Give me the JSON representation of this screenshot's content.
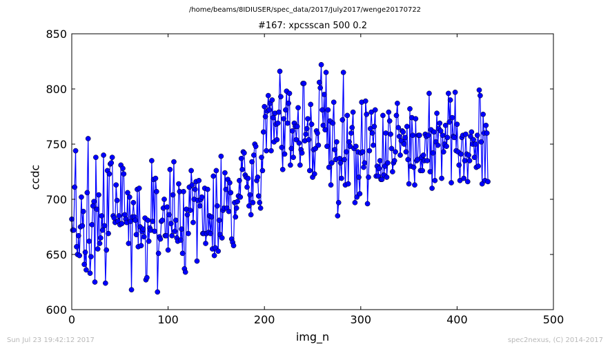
{
  "header": {
    "suptitle": "/home/beams/8IDIUSER/spec_data/2017/July2017/wenge20170722",
    "title": "#167: xpcsscan 500 0.2"
  },
  "footer": {
    "timestamp": "Sun Jul 23 19:42:12 2017",
    "credit": "spec2nexus, (C) 2014-2017"
  },
  "colors": {
    "series": "#0000ff",
    "axes": "#000000",
    "background": "#ffffff",
    "footer_text": "#b8b8b8"
  },
  "chart_data": {
    "type": "line",
    "xlabel": "img_n",
    "ylabel": "ccdc",
    "xlim": [
      0,
      500
    ],
    "ylim": [
      600,
      850
    ],
    "xticks": [
      0,
      100,
      200,
      300,
      400,
      500
    ],
    "yticks": [
      600,
      650,
      700,
      750,
      800,
      850
    ],
    "grid": false,
    "marker": "circle",
    "series": [
      {
        "x_start": 0,
        "x_step": 1,
        "values": [
          682,
          672,
          672,
          711,
          744,
          657,
          650,
          667,
          649,
          675,
          702,
          676,
          689,
          641,
          652,
          636,
          706,
          755,
          662,
          633,
          648,
          677,
          694,
          698,
          625,
          738,
          691,
          655,
          704,
          660,
          665,
          685,
          672,
          740,
          676,
          624,
          654,
          726,
          669,
          723,
          732,
          733,
          738,
          685,
          683,
          679,
          713,
          699,
          680,
          685,
          677,
          731,
          678,
          728,
          723,
          686,
          682,
          679,
          706,
          660,
          702,
          680,
          618,
          684,
          697,
          684,
          681,
          668,
          709,
          657,
          710,
          675,
          658,
          671,
          673,
          666,
          683,
          627,
          629,
          681,
          662,
          674,
          672,
          735,
          680,
          718,
          671,
          719,
          707,
          616,
          651,
          666,
          664,
          680,
          681,
          692,
          700,
          667,
          667,
          693,
          654,
          686,
          727,
          678,
          667,
          704,
          734,
          671,
          681,
          665,
          662,
          714,
          707,
          663,
          673,
          651,
          707,
          637,
          634,
          691,
          686,
          669,
          711,
          690,
          726,
          713,
          679,
          700,
          709,
          716,
          644,
          699,
          717,
          694,
          700,
          702,
          669,
          669,
          710,
          660,
          669,
          709,
          670,
          685,
          669,
          684,
          655,
          721,
          649,
          656,
          726,
          694,
          653,
          681,
          668,
          739,
          665,
          690,
          692,
          724,
          709,
          692,
          718,
          689,
          715,
          706,
          664,
          661,
          658,
          697,
          684,
          692,
          698,
          703,
          717,
          702,
          737,
          727,
          743,
          742,
          722,
          720,
          711,
          719,
          694,
          704,
          686,
          734,
          697,
          740,
          750,
          748,
          717,
          720,
          703,
          697,
          692,
          738,
          726,
          761,
          784,
          775,
          744,
          780,
          794,
          781,
          787,
          744,
          790,
          774,
          752,
          778,
          768,
          754,
          769,
          779,
          816,
          793,
          747,
          727,
          773,
          741,
          781,
          798,
          769,
          787,
          796,
          731,
          746,
          762,
          738,
          769,
          766,
          754,
          766,
          783,
          751,
          731,
          745,
          742,
          805,
          805,
          753,
          759,
          764,
          773,
          754,
          726,
          786,
          768,
          720,
          745,
          723,
          746,
          762,
          760,
          749,
          806,
          801,
          822,
          781,
          767,
          795,
          763,
          815,
          748,
          781,
          729,
          771,
          713,
          733,
          769,
          788,
          745,
          736,
          752,
          685,
          697,
          737,
          733,
          719,
          772,
          815,
          736,
          713,
          743,
          776,
          714,
          752,
          748,
          760,
          765,
          779,
          746,
          697,
          748,
          702,
          743,
          720,
          705,
          742,
          788,
          743,
          729,
          733,
          789,
          777,
          696,
          720,
          744,
          764,
          779,
          760,
          749,
          766,
          781,
          721,
          730,
          721,
          728,
          735,
          718,
          718,
          776,
          722,
          730,
          760,
          720,
          733,
          779,
          771,
          759,
          746,
          725,
          733,
          735,
          743,
          776,
          787,
          765,
          757,
          740,
          753,
          762,
          761,
          750,
          756,
          743,
          766,
          736,
          714,
          782,
          730,
          774,
          758,
          729,
          713,
          773,
          735,
          736,
          758,
          758,
          726,
          738,
          726,
          740,
          735,
          759,
          757,
          735,
          758,
          796,
          725,
          763,
          710,
          742,
          761,
          717,
          752,
          778,
          749,
          764,
          769,
          762,
          719,
          758,
          743,
          750,
          767,
          748,
          756,
          796,
          770,
          790,
          715,
          774,
          757,
          756,
          797,
          744,
          768,
          743,
          731,
          717,
          741,
          756,
          758,
          719,
          735,
          759,
          741,
          716,
          740,
          735,
          757,
          761,
          750,
          754,
          738,
          750,
          729,
          758,
          730,
          799,
          794,
          752,
          714,
          777,
          760,
          717,
          767,
          760,
          716
        ]
      }
    ]
  }
}
